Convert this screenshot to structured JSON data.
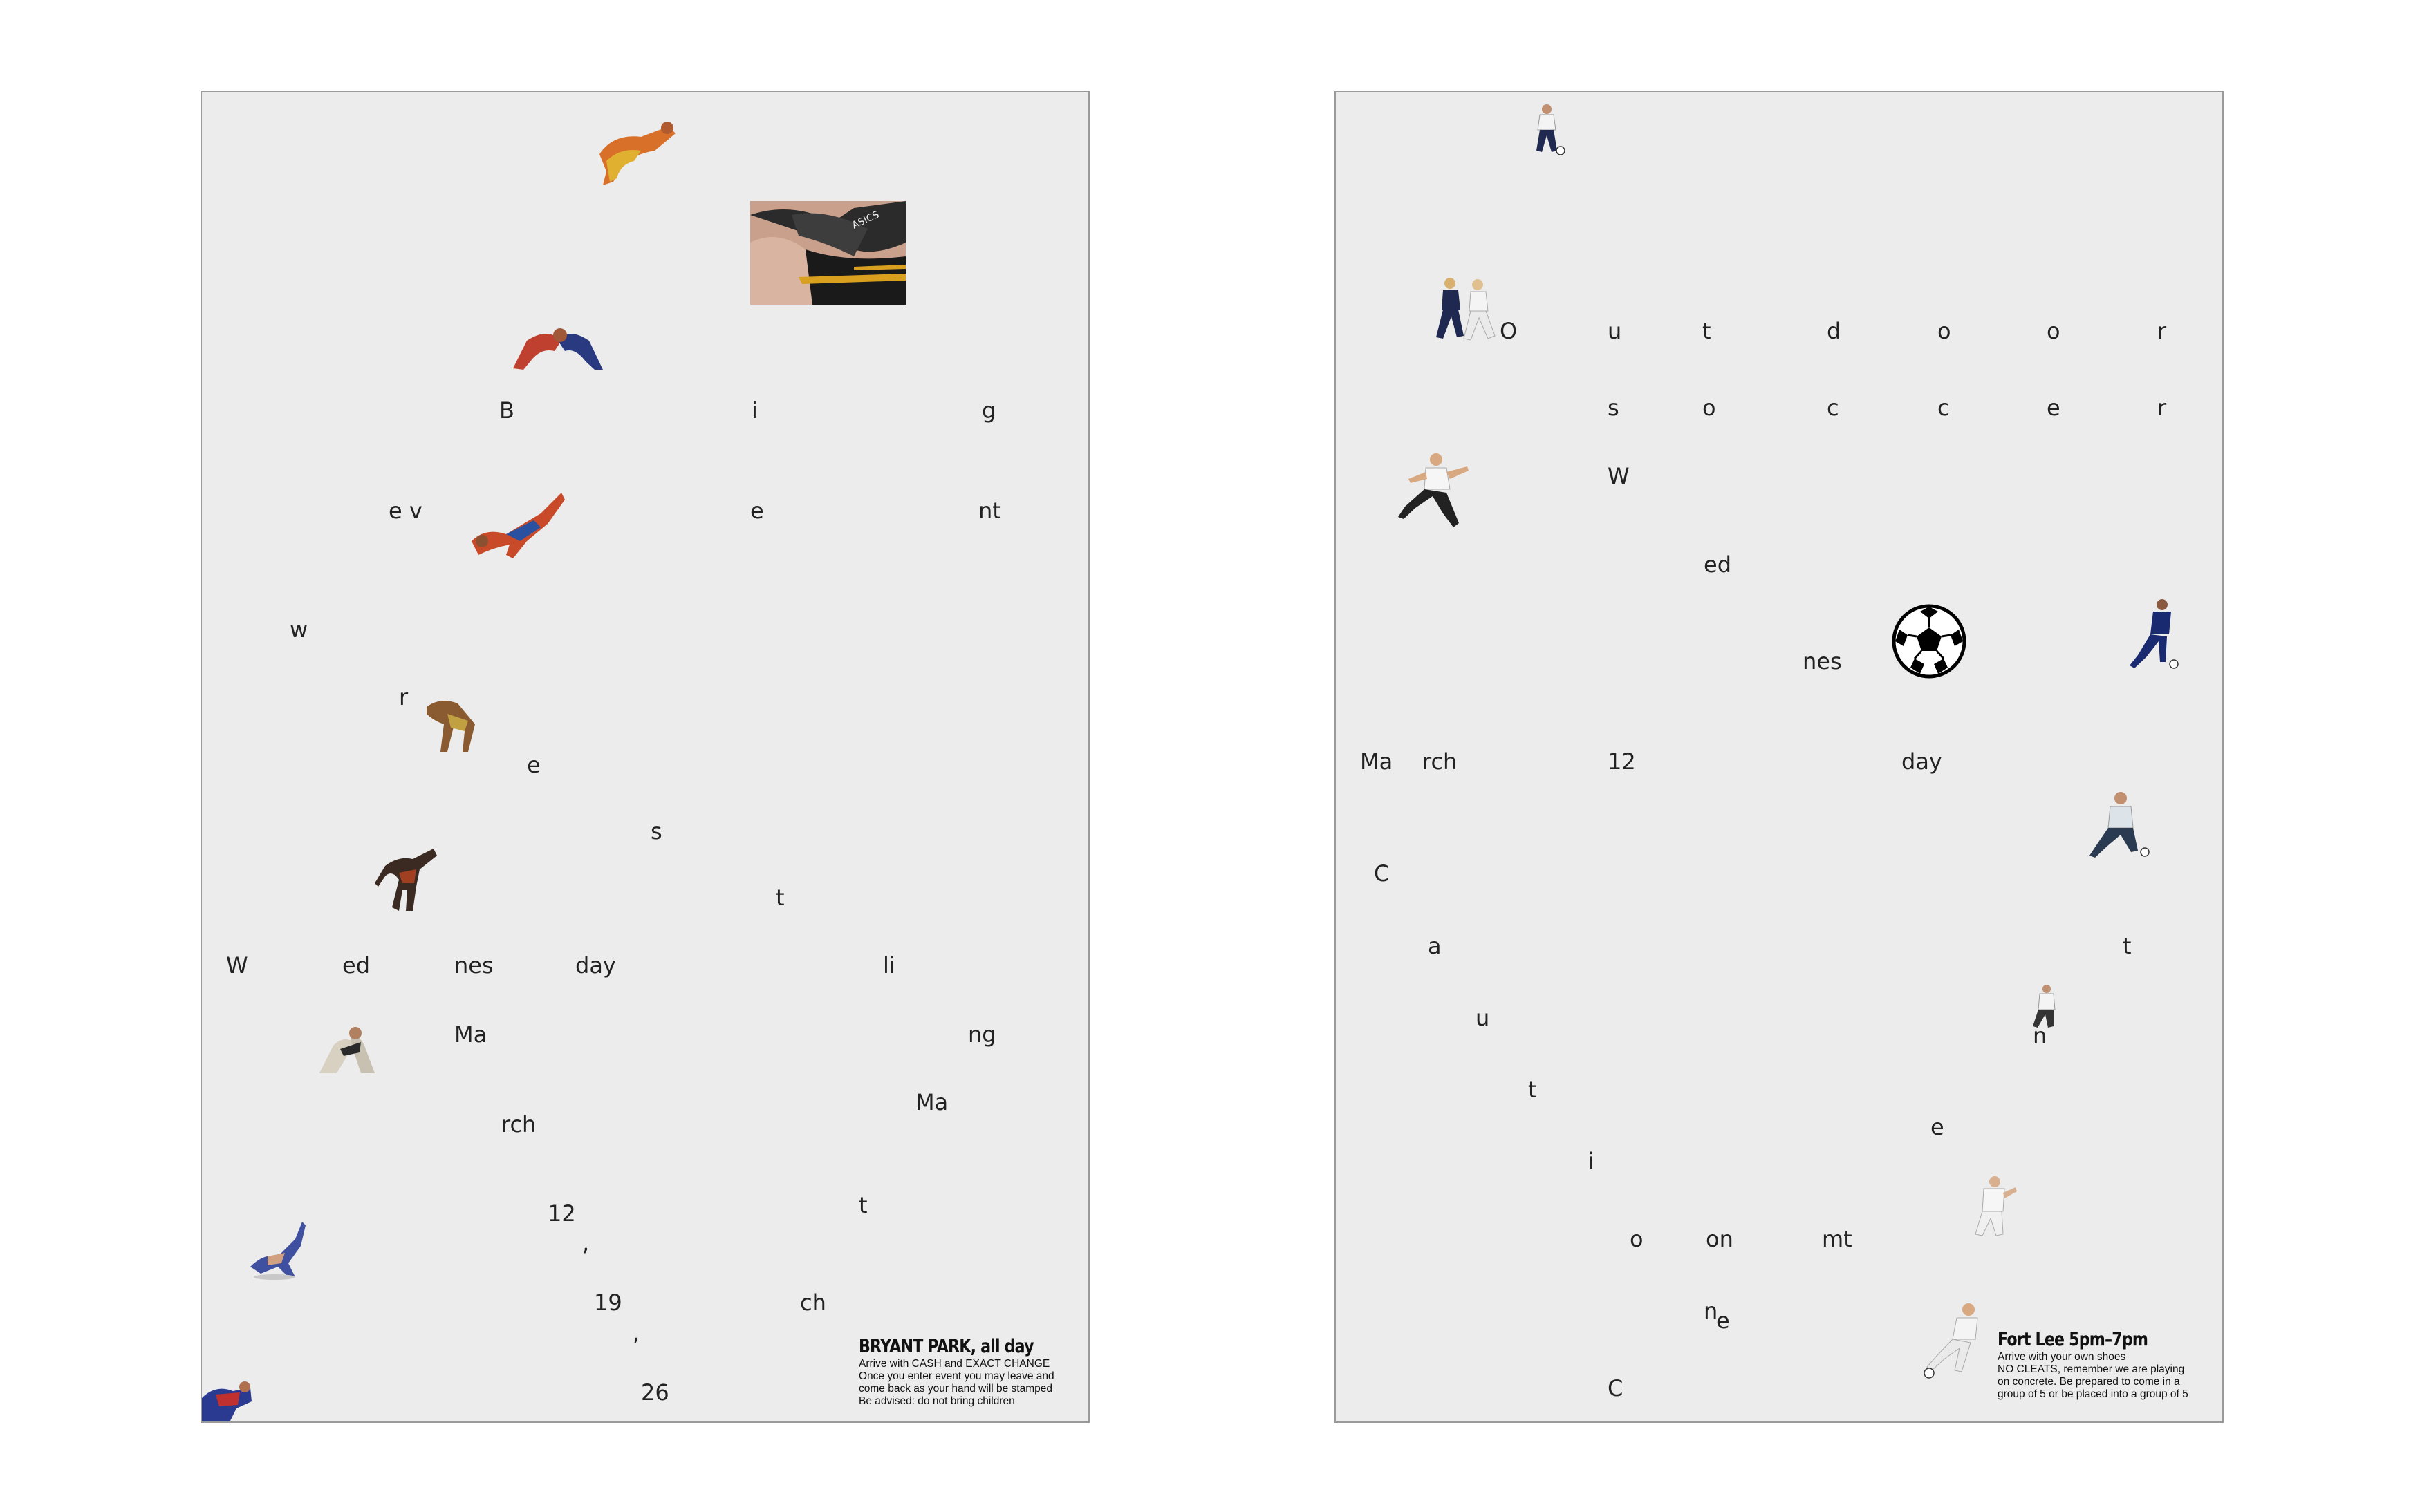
{
  "poster_left": {
    "words": [
      "B",
      "i",
      "g",
      "e v",
      "e",
      "nt",
      "w",
      "r",
      "e",
      "s",
      "t",
      "W",
      "ed",
      "nes",
      "day",
      "li",
      "Ma",
      "ng",
      "rch",
      "Ma",
      "12",
      ",",
      "t",
      "19",
      "ch",
      ",",
      "26"
    ],
    "info": {
      "title": "BRYANT PARK, all day",
      "lines": [
        "Arrive with CASH and EXACT CHANGE",
        "Once you enter event you may leave and",
        "come back as your hand will be stamped",
        "Be advised: do not bring children"
      ]
    },
    "photo_text": "ASICS",
    "figures": [
      "wrestler-figure",
      "wrestler-figure",
      "wrestler-figure",
      "wrestler-figure",
      "wrestler-figure",
      "wrestler-figure",
      "wrestler-figure",
      "wrestler-figure"
    ]
  },
  "poster_right": {
    "words": [
      "O",
      "u",
      "t",
      "d",
      "o",
      "o",
      "r",
      "s",
      "o",
      "c",
      "c",
      "e",
      "r",
      "W",
      "ed",
      "nes",
      "Ma",
      "rch",
      "12",
      "day",
      "C",
      "a",
      "t",
      "u",
      "n",
      "t",
      "e",
      "i",
      "o",
      "on",
      "mt",
      "n",
      "e",
      "C"
    ],
    "info": {
      "title": "Fort Lee 5pm–7pm",
      "lines": [
        "Arrive with your own shoes",
        "NO CLEATS, remember we are playing",
        "on concrete. Be prepared to come in a",
        "group of 5 or be placed into a group of 5"
      ]
    },
    "figures": [
      "soccer-player-figure",
      "soccer-player-figure",
      "soccer-player-figure",
      "soccer-player-figure",
      "soccer-player-figure",
      "soccer-player-figure",
      "soccer-player-figure",
      "soccer-player-figure"
    ],
    "ball": "soccer-ball-icon"
  }
}
